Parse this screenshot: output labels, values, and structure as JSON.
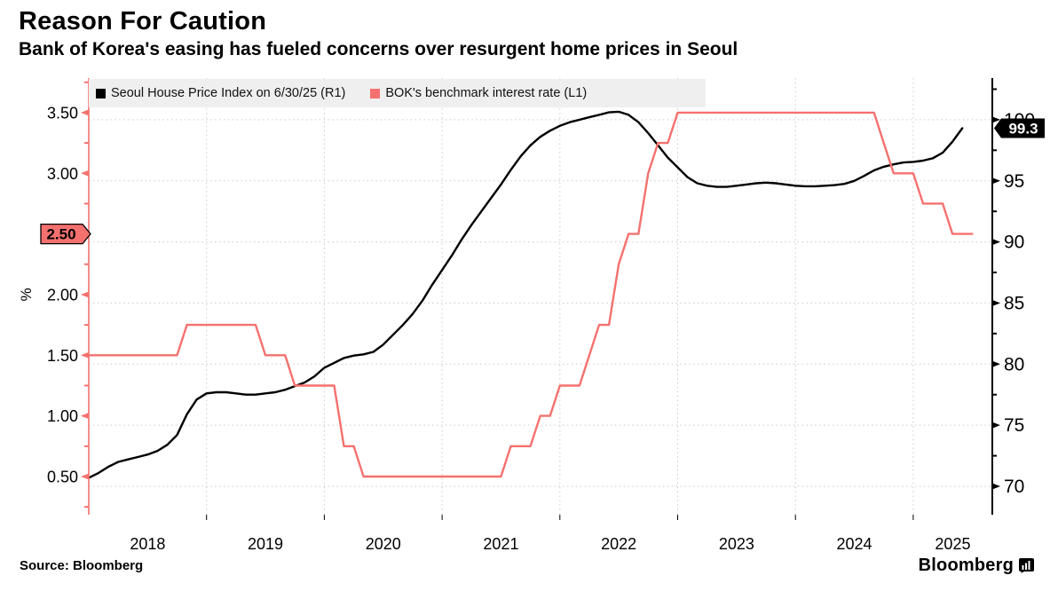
{
  "header": {
    "title": "Reason For Caution",
    "subtitle": "Bank of Korea's easing has fueled concerns over resurgent home prices in Seoul"
  },
  "footer": {
    "source": "Source: Bloomberg",
    "brand": "Bloomberg",
    "brand_icon": "bloomberg-chart-bubble-icon"
  },
  "chart_data": {
    "type": "line",
    "title": "Reason For Caution",
    "subtitle": "Bank of Korea's easing has fueled concerns over resurgent home prices in Seoul",
    "grid": "dotted",
    "legend_position": "top",
    "x_axis": {
      "start_year": 2018,
      "start_month": 1,
      "frequency": "monthly",
      "tick_labels": [
        "2018",
        "2019",
        "2020",
        "2021",
        "2022",
        "2023",
        "2024",
        "2025"
      ]
    },
    "left_axis": {
      "title": "%",
      "color": "#f4716f",
      "min": 0.5,
      "max": 3.5,
      "ticks": [
        {
          "value": 0.5,
          "label": "0.50"
        },
        {
          "value": 1.0,
          "label": "1.00"
        },
        {
          "value": 1.5,
          "label": "1.50"
        },
        {
          "value": 2.0,
          "label": "2.00"
        },
        {
          "value": 2.5,
          "label": "2.50"
        },
        {
          "value": 3.0,
          "label": "3.00"
        },
        {
          "value": 3.5,
          "label": "3.50"
        }
      ],
      "badge": {
        "label": "2.50",
        "value": 2.5,
        "fill": "#f4716f",
        "text_color": "#000000"
      }
    },
    "right_axis": {
      "color": "#000000",
      "min": 70,
      "max": 100,
      "ticks": [
        {
          "value": 70,
          "label": "70"
        },
        {
          "value": 75,
          "label": "75"
        },
        {
          "value": 80,
          "label": "80"
        },
        {
          "value": 85,
          "label": "85"
        },
        {
          "value": 90,
          "label": "90"
        },
        {
          "value": 95,
          "label": "95"
        },
        {
          "value": 100,
          "label": "100"
        }
      ],
      "badge": {
        "label": "99.3",
        "value": 99.3,
        "fill": "#000000",
        "text_color": "#ffffff"
      }
    },
    "series": [
      {
        "name": "Seoul House Price Index on 6/30/25 (R1)",
        "axis": "right",
        "color": "#000000",
        "values": [
          70.7,
          71.1,
          71.6,
          72.0,
          72.2,
          72.4,
          72.6,
          72.9,
          73.4,
          74.2,
          75.9,
          77.1,
          77.6,
          77.7,
          77.7,
          77.6,
          77.5,
          77.5,
          77.6,
          77.7,
          77.9,
          78.2,
          78.5,
          79.0,
          79.7,
          80.1,
          80.5,
          80.7,
          80.8,
          81.0,
          81.6,
          82.4,
          83.2,
          84.1,
          85.2,
          86.5,
          87.7,
          88.9,
          90.2,
          91.4,
          92.5,
          93.6,
          94.7,
          95.9,
          97.0,
          97.9,
          98.6,
          99.1,
          99.5,
          99.8,
          100.0,
          100.2,
          100.4,
          100.6,
          100.65,
          100.4,
          99.8,
          98.9,
          97.9,
          96.9,
          96.1,
          95.3,
          94.8,
          94.6,
          94.5,
          94.5,
          94.6,
          94.7,
          94.8,
          94.85,
          94.8,
          94.7,
          94.6,
          94.55,
          94.55,
          94.6,
          94.65,
          94.75,
          95.0,
          95.4,
          95.85,
          96.15,
          96.35,
          96.5,
          96.55,
          96.65,
          96.85,
          97.3,
          98.2,
          99.3
        ]
      },
      {
        "name": "BOK's benchmark interest rate (L1)",
        "axis": "left",
        "color": "#f4716f",
        "values": [
          1.5,
          1.5,
          1.5,
          1.5,
          1.5,
          1.5,
          1.5,
          1.5,
          1.5,
          1.5,
          1.75,
          1.75,
          1.75,
          1.75,
          1.75,
          1.75,
          1.75,
          1.75,
          1.5,
          1.5,
          1.5,
          1.25,
          1.25,
          1.25,
          1.25,
          1.25,
          0.75,
          0.75,
          0.5,
          0.5,
          0.5,
          0.5,
          0.5,
          0.5,
          0.5,
          0.5,
          0.5,
          0.5,
          0.5,
          0.5,
          0.5,
          0.5,
          0.5,
          0.75,
          0.75,
          0.75,
          1.0,
          1.0,
          1.25,
          1.25,
          1.25,
          1.5,
          1.75,
          1.75,
          2.25,
          2.5,
          2.5,
          3.0,
          3.25,
          3.25,
          3.5,
          3.5,
          3.5,
          3.5,
          3.5,
          3.5,
          3.5,
          3.5,
          3.5,
          3.5,
          3.5,
          3.5,
          3.5,
          3.5,
          3.5,
          3.5,
          3.5,
          3.5,
          3.5,
          3.5,
          3.5,
          3.25,
          3.0,
          3.0,
          3.0,
          2.75,
          2.75,
          2.75,
          2.5,
          2.5,
          2.5
        ]
      }
    ]
  }
}
